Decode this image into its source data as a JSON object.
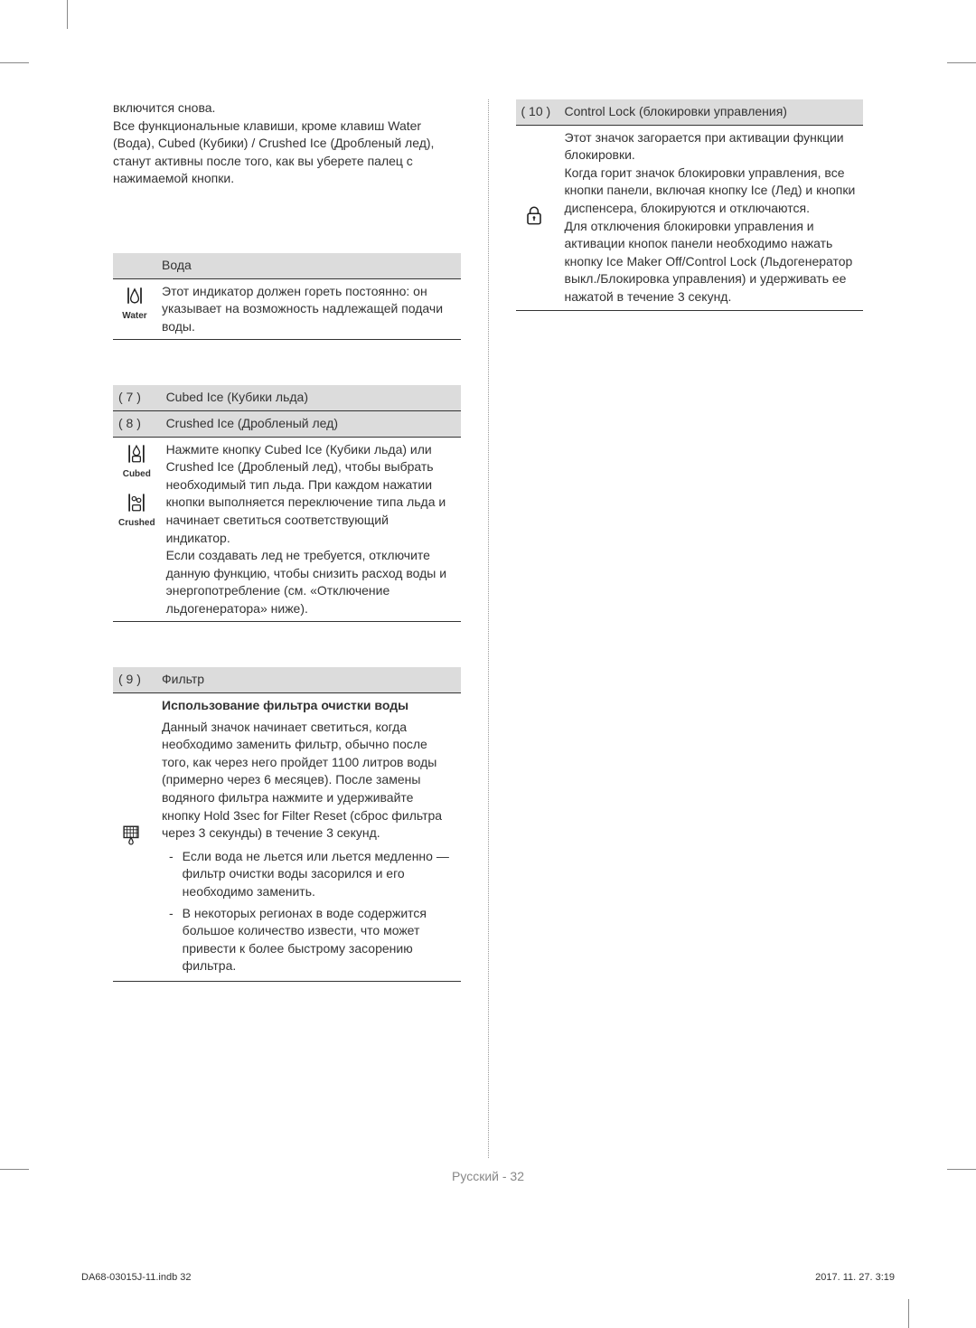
{
  "intro": "включится снова.\nВсе функциональные клавиши, кроме клавиш Water (Вода), Cubed (Кубики) / Crushed Ice (Дробленый лед), станут активны после того, как вы уберете палец с нажимаемой кнопки.",
  "water": {
    "title": "Вода",
    "icon_label": "Water",
    "body": "Этот индикатор должен гореть постоянно: он указывает на возможность надлежащей подачи воды."
  },
  "ice": {
    "row7_num": "( 7 )",
    "row7_title": "Cubed Ice (Кубики льда)",
    "row8_num": "( 8 )",
    "row8_title": "Crushed Ice (Дробленый лед)",
    "icon_label_cubed": "Cubed",
    "icon_label_crushed": "Crushed",
    "body": "Нажмите кнопку Cubed Ice (Кубики льда) или Crushed Ice (Дробленый лед), чтобы выбрать необходимый тип льда. При каждом нажатии кнопки выполняется переключение типа льда и начинает светиться соответствующий индикатор.\nЕсли создавать лед не требуется, отключите данную функцию, чтобы снизить расход воды и энергопотребление (см. «Отключение льдогенератора» ниже)."
  },
  "filter": {
    "num": "( 9 )",
    "title": "Фильтр",
    "subhead": "Использование фильтра очистки воды",
    "body": "Данный значок начинает светиться, когда необходимо заменить фильтр, обычно после того, как через него пройдет 1100 литров воды (примерно через 6 месяцев). После замены водяного фильтра нажмите и удерживайте кнопку Hold 3sec for Filter Reset (сброс фильтра через 3 секунды) в течение 3 секунд.",
    "bullets": [
      "Если вода не льется или льется медленно — фильтр очистки воды засорился и его необходимо заменить.",
      "В некоторых регионах в воде содержится большое количество извести, что может привести к более быстрому засорению фильтра."
    ]
  },
  "lock": {
    "num": "( 10 )",
    "title": "Control Lock (блокировки управления)",
    "body": "Этот значок загорается при активации функции блокировки.\nКогда горит значок блокировки управления, все кнопки панели, включая кнопку Ice (Лед) и кнопки диспенсера, блокируются и отключаются.\nДля отключения блокировки управления и активации кнопок панели необходимо нажать кнопку Ice Maker Off/Control Lock (Льдогенератор выкл./Блокировка управления) и удерживать ее нажатой в течение 3 секунд."
  },
  "page_footer": "Русский - 32",
  "meta_left": "DA68-03015J-11.indb   32",
  "meta_right": "2017. 11. 27.   3:19",
  "colors": {
    "header_bg": "#dcdcdc",
    "text": "#333333",
    "muted": "#888888",
    "rule": "#333333"
  }
}
